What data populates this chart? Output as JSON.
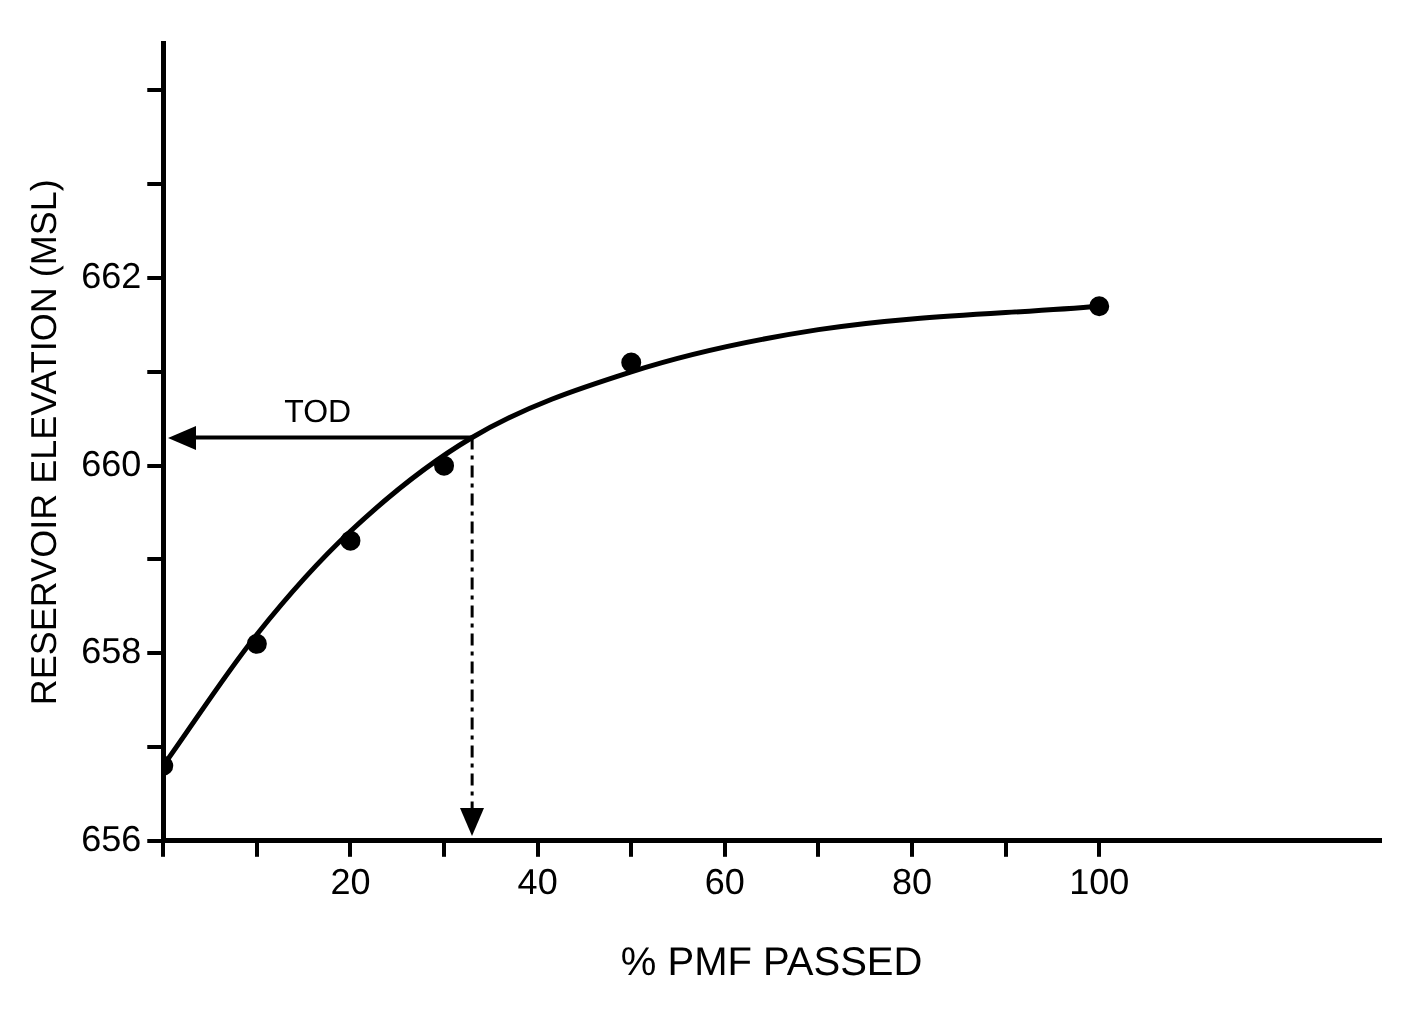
{
  "chart_data": {
    "type": "scatter",
    "xlabel": "% PMF PASSED",
    "ylabel": "RESERVOIR ELEVATION (MSL)",
    "xlim": [
      0,
      130
    ],
    "xticks": [
      {
        "value": 0,
        "label": null
      },
      {
        "value": 10,
        "label": null
      },
      20,
      {
        "value": 30,
        "label": null
      },
      40,
      {
        "value": 50,
        "label": null
      },
      60,
      {
        "value": 70,
        "label": null
      },
      80,
      {
        "value": 90,
        "label": null
      },
      100
    ],
    "ylim": [
      656,
      664.5
    ],
    "yticks": [
      656,
      {
        "value": 657,
        "label": null
      },
      658,
      {
        "value": 659,
        "label": null
      },
      660,
      {
        "value": 661,
        "label": null
      },
      662,
      {
        "value": 663,
        "label": null
      },
      {
        "value": 664,
        "label": null
      }
    ],
    "grid": false,
    "legend": false,
    "series": [
      {
        "type": "scatter",
        "color": "#000000",
        "marker": "circle",
        "x": [
          0,
          10,
          20,
          30,
          50,
          100
        ],
        "values": [
          656.8,
          658.1,
          659.2,
          660.0,
          661.1,
          661.7
        ]
      },
      {
        "type": "line",
        "color": "#000000",
        "marker": "none",
        "line_style": "solid",
        "x": [
          0,
          10,
          20,
          33,
          50,
          70,
          100
        ],
        "values": [
          656.8,
          658.2,
          659.3,
          660.3,
          661.0,
          661.45,
          661.7
        ]
      }
    ],
    "ref_lines": [
      {
        "axis": "y",
        "value": 660.3,
        "label": "TOD",
        "color": "#000000",
        "line_style": "solid"
      },
      {
        "axis": "x",
        "value": 33,
        "color": "#000000",
        "line_style": "dashed"
      }
    ]
  }
}
